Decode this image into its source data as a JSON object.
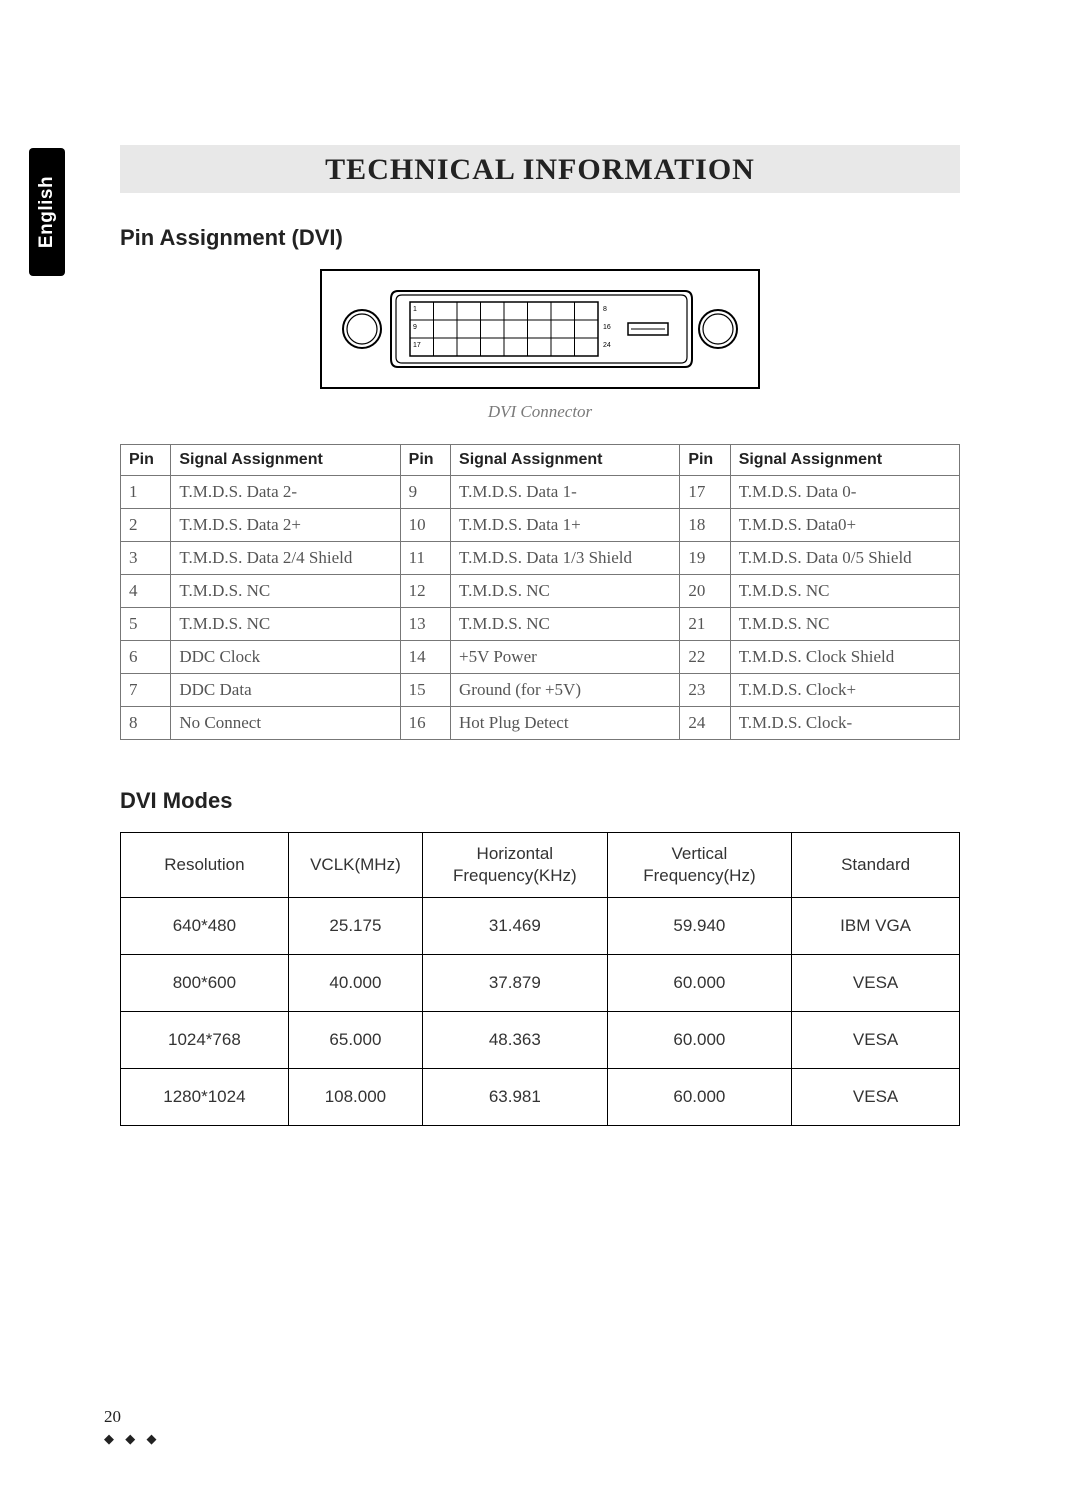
{
  "language_tab": "English",
  "title": "TECHNICAL INFORMATION",
  "section1": {
    "heading": "Pin Assignment (DVI)",
    "caption": "DVI  Connector",
    "diagram": {
      "pin_labels": {
        "top_right": "8",
        "mid_right": "16",
        "bot_left": "17",
        "bot_right": "24"
      }
    },
    "headers": {
      "pin": "Pin",
      "signal": "Signal Assignment"
    },
    "rows": [
      {
        "p1": "1",
        "s1": "T.M.D.S. Data 2-",
        "p2": "9",
        "s2": "T.M.D.S. Data 1-",
        "p3": "17",
        "s3": "T.M.D.S. Data 0-"
      },
      {
        "p1": "2",
        "s1": "T.M.D.S. Data 2+",
        "p2": "10",
        "s2": "T.M.D.S. Data 1+",
        "p3": "18",
        "s3": "T.M.D.S. Data0+"
      },
      {
        "p1": "3",
        "s1": "T.M.D.S. Data 2/4 Shield",
        "p2": "11",
        "s2": "T.M.D.S. Data 1/3 Shield",
        "p3": "19",
        "s3": "T.M.D.S. Data 0/5 Shield"
      },
      {
        "p1": "4",
        "s1": "T.M.D.S. NC",
        "p2": "12",
        "s2": "T.M.D.S. NC",
        "p3": "20",
        "s3": "T.M.D.S. NC"
      },
      {
        "p1": "5",
        "s1": "T.M.D.S. NC",
        "p2": "13",
        "s2": "T.M.D.S. NC",
        "p3": "21",
        "s3": "T.M.D.S. NC"
      },
      {
        "p1": "6",
        "s1": "DDC Clock",
        "p2": "14",
        "s2": "+5V Power",
        "p3": "22",
        "s3": "T.M.D.S. Clock Shield"
      },
      {
        "p1": "7",
        "s1": "DDC Data",
        "p2": "15",
        "s2": "Ground (for +5V)",
        "p3": "23",
        "s3": "T.M.D.S. Clock+"
      },
      {
        "p1": "8",
        "s1": "No Connect",
        "p2": "16",
        "s2": "Hot Plug Detect",
        "p3": "24",
        "s3": "T.M.D.S. Clock-"
      }
    ]
  },
  "section2": {
    "heading": "DVI Modes",
    "headers": {
      "resolution": "Resolution",
      "vclk": "VCLK(MHz)",
      "hfreq": "Horizontal Frequency(KHz)",
      "vfreq": "Vertical Frequency(Hz)",
      "standard": "Standard"
    },
    "rows": [
      {
        "res": "640*480",
        "vclk": "25.175",
        "h": "31.469",
        "v": "59.940",
        "std": "IBM VGA"
      },
      {
        "res": "800*600",
        "vclk": "40.000",
        "h": "37.879",
        "v": "60.000",
        "std": "VESA"
      },
      {
        "res": "1024*768",
        "vclk": "65.000",
        "h": "48.363",
        "v": "60.000",
        "std": "VESA"
      },
      {
        "res": "1280*1024",
        "vclk": "108.000",
        "h": "63.981",
        "v": "60.000",
        "std": "VESA"
      }
    ]
  },
  "footer": {
    "page_number": "20",
    "diamonds": "◆ ◆ ◆"
  },
  "style": {
    "title_bg": "#e8e8e8",
    "border_color": "#777",
    "text_color": "#555"
  }
}
